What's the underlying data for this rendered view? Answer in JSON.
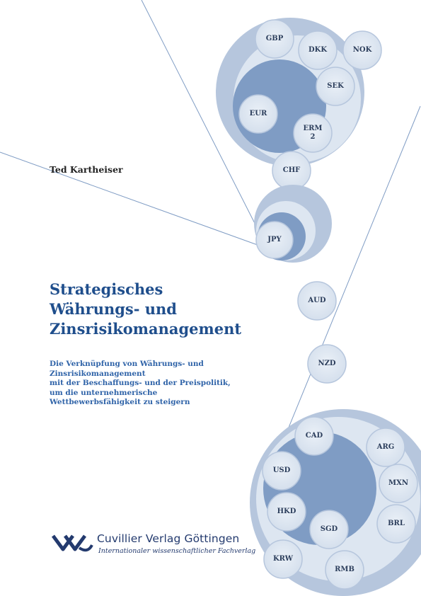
{
  "cover": {
    "author": "Ted Kartheiser",
    "title_line1": "Strategisches",
    "title_line2": "Währungs- und",
    "title_line3": "Zinsrisikomanagement",
    "subtitle_line1": "Die Verknüpfung von Währungs- und",
    "subtitle_line2": "Zinsrisikomanagement",
    "subtitle_line3": "mit  der Beschaffungs- und der Preispolitik,",
    "subtitle_line4": "um die unternehmerische",
    "subtitle_line5": "Wettbewerbsfähigkeit zu steigern"
  },
  "currencies": [
    "GBP",
    "DKK",
    "NOK",
    "SEK",
    "EUR",
    "ERM\n2",
    "CHF",
    "JPY",
    "AUD",
    "NZD",
    "CAD",
    "ARG",
    "USD",
    "MXN",
    "HKD",
    "SGD",
    "BRL",
    "KRW",
    "RMB"
  ],
  "publisher": {
    "name": "Cuvillier Verlag Göttingen",
    "tagline": "Internationaler wissenschaftlicher Fachverlag"
  },
  "colors": {
    "title": "#1f4e8c",
    "subtitle": "#2f63a8",
    "bubble_dark": "#7f9cc4",
    "bubble_mid": "#b6c6dd",
    "bubble_light": "#dde6f1"
  }
}
